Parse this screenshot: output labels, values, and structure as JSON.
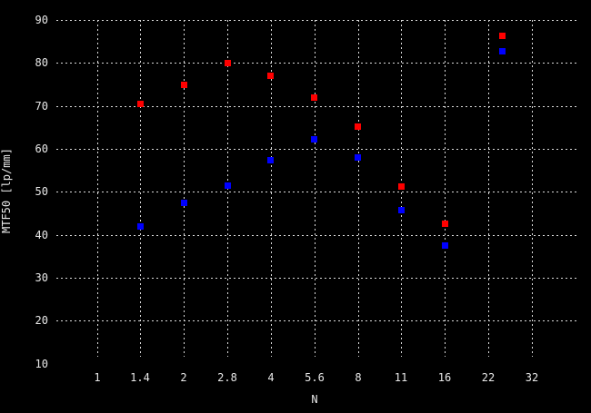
{
  "figure": {
    "background": "#000000",
    "grid_color": "#dcdcdc",
    "text_color": "#e8e8e8"
  },
  "chart_data": {
    "type": "scatter",
    "title": "",
    "xlabel": "N",
    "ylabel": "MTF50 [lp/mm]",
    "x_scale": "log (f-stop steps)",
    "x_ticks": [
      "1",
      "1.4",
      "2",
      "2.8",
      "4",
      "5.6",
      "8",
      "11",
      "16",
      "22",
      "32"
    ],
    "y_ticks": [
      90,
      80,
      70,
      60,
      50,
      40,
      30,
      20,
      10
    ],
    "ylim": [
      10,
      90
    ],
    "grid": "dotted, no line at y=10",
    "legend": {
      "position": "top-right",
      "entries": [
        {
          "color": "#ff0000",
          "marker": "square"
        },
        {
          "color": "#0000ff",
          "marker": "square"
        }
      ]
    },
    "series": [
      {
        "name": "red-squares",
        "color": "#ff0000",
        "marker": "square",
        "x": [
          "1.4",
          "2",
          "2.8",
          "4",
          "5.6",
          "8",
          "11",
          "16"
        ],
        "y": [
          70.4,
          74.9,
          80.0,
          77.0,
          71.9,
          65.1,
          51.3,
          42.6
        ]
      },
      {
        "name": "blue-squares",
        "color": "#0000ff",
        "marker": "square",
        "x": [
          "1.4",
          "2",
          "2.8",
          "4",
          "5.6",
          "8",
          "11",
          "16"
        ],
        "y": [
          42.0,
          47.4,
          51.4,
          57.4,
          62.2,
          57.9,
          45.8,
          37.5
        ]
      }
    ]
  }
}
